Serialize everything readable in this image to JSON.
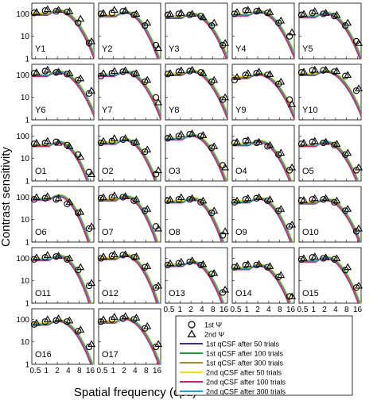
{
  "chart_data": {
    "type": "line",
    "xlabel": "Spatial frequency (cpd)",
    "ylabel": "Contrast sensitivity",
    "x_scale": "log",
    "y_scale": "log",
    "xlim": [
      0.4,
      20
    ],
    "ylim": [
      1,
      300
    ],
    "x_ticks": [
      "0.5",
      "1",
      "2",
      "4",
      "8",
      "16"
    ],
    "y_ticks": [
      "1",
      "10",
      "100"
    ],
    "x_tick_values": [
      0.5,
      1,
      2,
      4,
      8,
      16
    ],
    "y_tick_values": [
      1,
      10,
      100
    ],
    "legend": {
      "placement": "bottom-right",
      "markers": [
        {
          "symbol": "circle",
          "label": "1st Ψ"
        },
        {
          "symbol": "triangle",
          "label": "2nd Ψ"
        }
      ],
      "lines": [
        {
          "label": "1st qCSF after 50 trials",
          "color": "#3d2b96"
        },
        {
          "label": "1st qCSF after 100 trials",
          "color": "#1a9e3c"
        },
        {
          "label": "1st qCSF after 300 trials",
          "color": "#a88c2a"
        },
        {
          "label": "2nd qCSF after 50 trials",
          "color": "#f2e600"
        },
        {
          "label": "2nd qCSF after 100 trials",
          "color": "#d81e6a"
        },
        {
          "label": "2nd qCSF after 300 trials",
          "color": "#1aa6d8"
        }
      ]
    },
    "sf": [
      0.5,
      1,
      2,
      4,
      8,
      16
    ],
    "panels": [
      {
        "label": "Y1",
        "peak": 140,
        "cutoff": 22,
        "circles": [
          110,
          140,
          130,
          120,
          40,
          5
        ],
        "triangles": [
          120,
          160,
          150,
          130,
          60,
          6
        ]
      },
      {
        "label": "Y2",
        "peak": 120,
        "cutoff": 18,
        "circles": [
          100,
          110,
          130,
          90,
          30,
          4
        ],
        "triangles": [
          110,
          150,
          140,
          100,
          40,
          3
        ]
      },
      {
        "label": "Y3",
        "peak": 100,
        "cutoff": 20,
        "circles": [
          90,
          100,
          90,
          80,
          30,
          4
        ],
        "triangles": [
          100,
          110,
          100,
          70,
          40,
          5
        ]
      },
      {
        "label": "Y4",
        "peak": 130,
        "cutoff": 22,
        "circles": [
          100,
          140,
          130,
          110,
          40,
          10
        ],
        "triangles": [
          120,
          150,
          140,
          120,
          50,
          15
        ]
      },
      {
        "label": "Y5",
        "peak": 110,
        "cutoff": 20,
        "circles": [
          90,
          110,
          100,
          80,
          30,
          6
        ],
        "triangles": [
          100,
          130,
          110,
          90,
          40,
          5
        ]
      },
      {
        "label": "Y6",
        "peak": 140,
        "cutoff": 24,
        "circles": [
          120,
          150,
          130,
          110,
          60,
          15
        ],
        "triangles": [
          130,
          170,
          140,
          120,
          70,
          20
        ]
      },
      {
        "label": "Y7",
        "peak": 140,
        "cutoff": 22,
        "circles": [
          90,
          120,
          140,
          110,
          50,
          10
        ],
        "triangles": [
          120,
          150,
          160,
          120,
          60,
          6
        ]
      },
      {
        "label": "Y8",
        "peak": 150,
        "cutoff": 22,
        "circles": [
          110,
          140,
          150,
          130,
          50,
          8
        ],
        "triangles": [
          120,
          160,
          170,
          120,
          60,
          10
        ]
      },
      {
        "label": "Y9",
        "peak": 110,
        "cutoff": 22,
        "circles": [
          60,
          100,
          120,
          100,
          40,
          8
        ],
        "triangles": [
          80,
          120,
          140,
          110,
          50,
          5
        ]
      },
      {
        "label": "Y10",
        "peak": 150,
        "cutoff": 24,
        "circles": [
          130,
          160,
          160,
          140,
          90,
          20
        ],
        "triangles": [
          140,
          170,
          170,
          150,
          100,
          25
        ]
      },
      {
        "label": "O1",
        "peak": 55,
        "cutoff": 14,
        "circles": [
          45,
          50,
          55,
          40,
          15,
          2.5
        ],
        "triangles": [
          50,
          60,
          50,
          35,
          12,
          2
        ]
      },
      {
        "label": "O2",
        "peak": 70,
        "cutoff": 15,
        "circles": [
          50,
          60,
          70,
          50,
          20,
          2
        ],
        "triangles": [
          60,
          80,
          80,
          55,
          25,
          3
        ]
      },
      {
        "label": "O3",
        "peak": 110,
        "cutoff": 18,
        "circles": [
          80,
          100,
          120,
          100,
          30,
          5
        ],
        "triangles": [
          90,
          120,
          130,
          110,
          35,
          4
        ]
      },
      {
        "label": "O4",
        "peak": 60,
        "cutoff": 16,
        "circles": [
          50,
          60,
          50,
          35,
          15,
          3
        ],
        "triangles": [
          55,
          65,
          55,
          40,
          18,
          4
        ]
      },
      {
        "label": "O5",
        "peak": 55,
        "cutoff": 16,
        "circles": [
          45,
          55,
          50,
          40,
          15,
          3
        ],
        "triangles": [
          50,
          60,
          55,
          45,
          18,
          4
        ]
      },
      {
        "label": "O6",
        "peak": 120,
        "cutoff": 15,
        "circles": [
          80,
          90,
          80,
          50,
          20,
          4
        ],
        "triangles": [
          100,
          110,
          90,
          60,
          22,
          5
        ]
      },
      {
        "label": "O7",
        "peak": 110,
        "cutoff": 16,
        "circles": [
          90,
          100,
          100,
          70,
          25,
          5
        ],
        "triangles": [
          100,
          120,
          110,
          80,
          30,
          4
        ]
      },
      {
        "label": "O8",
        "peak": 90,
        "cutoff": 15,
        "circles": [
          70,
          80,
          80,
          60,
          20,
          2
        ],
        "triangles": [
          80,
          100,
          90,
          70,
          25,
          3
        ]
      },
      {
        "label": "O9",
        "peak": 90,
        "cutoff": 17,
        "circles": [
          60,
          80,
          90,
          70,
          25,
          5
        ],
        "triangles": [
          70,
          90,
          100,
          80,
          30,
          6
        ]
      },
      {
        "label": "O10",
        "peak": 80,
        "cutoff": 19,
        "circles": [
          70,
          80,
          80,
          60,
          25,
          3
        ],
        "triangles": [
          75,
          90,
          90,
          70,
          30,
          4
        ]
      },
      {
        "label": "O11",
        "peak": 130,
        "cutoff": 16,
        "circles": [
          90,
          110,
          120,
          90,
          30,
          6
        ],
        "triangles": [
          110,
          140,
          130,
          100,
          40,
          8
        ]
      },
      {
        "label": "O12",
        "peak": 140,
        "cutoff": 17,
        "circles": [
          100,
          130,
          140,
          110,
          40,
          5
        ],
        "triangles": [
          120,
          150,
          150,
          120,
          45,
          6
        ]
      },
      {
        "label": "O13",
        "peak": 70,
        "cutoff": 15,
        "circles": [
          50,
          60,
          70,
          50,
          20,
          3
        ],
        "triangles": [
          60,
          70,
          80,
          55,
          22,
          4
        ]
      },
      {
        "label": "O14",
        "peak": 50,
        "cutoff": 15,
        "circles": [
          40,
          50,
          50,
          40,
          15,
          2
        ],
        "triangles": [
          45,
          55,
          55,
          45,
          18,
          2
        ]
      },
      {
        "label": "O15",
        "peak": 110,
        "cutoff": 18,
        "circles": [
          90,
          110,
          100,
          90,
          30,
          5
        ],
        "triangles": [
          100,
          120,
          110,
          100,
          40,
          6
        ]
      },
      {
        "label": "O16",
        "peak": 90,
        "cutoff": 18,
        "circles": [
          60,
          80,
          90,
          80,
          30,
          6
        ],
        "triangles": [
          70,
          100,
          110,
          90,
          35,
          8
        ]
      },
      {
        "label": "O17",
        "peak": 110,
        "cutoff": 19,
        "circles": [
          80,
          100,
          110,
          100,
          40,
          6
        ],
        "triangles": [
          100,
          130,
          140,
          120,
          50,
          8
        ]
      }
    ]
  }
}
